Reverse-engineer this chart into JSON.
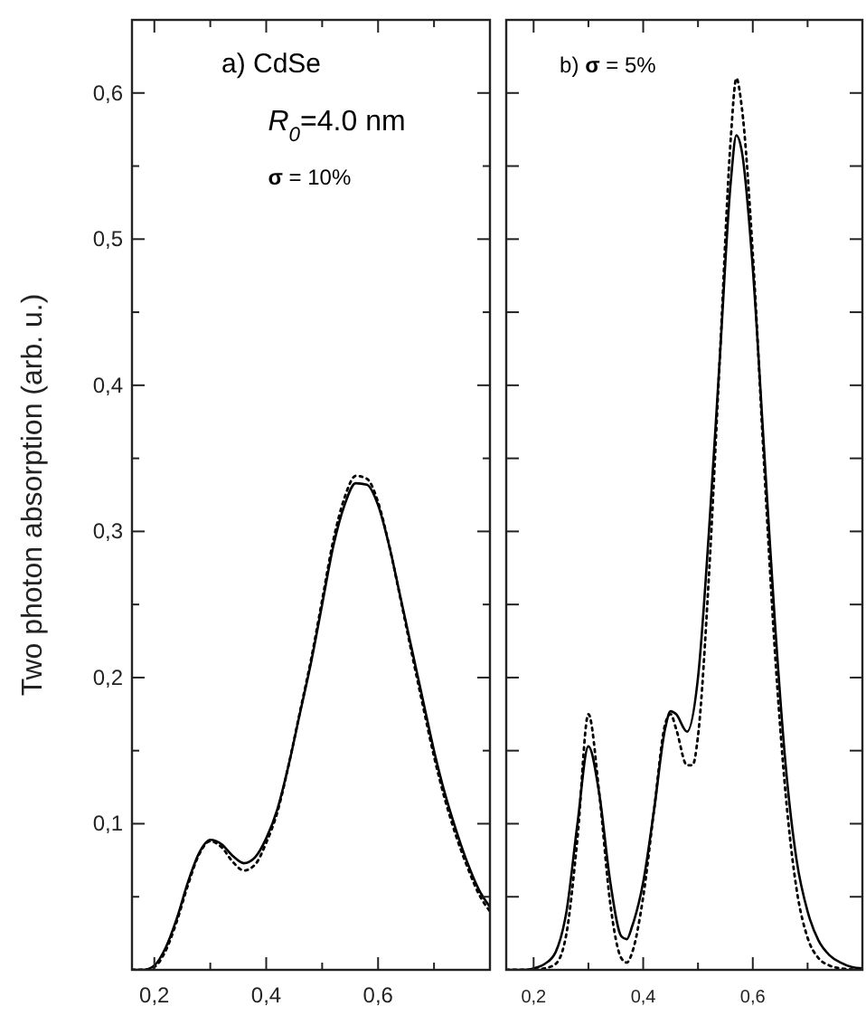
{
  "chart_data": [
    {
      "type": "line",
      "ylabel": "Two photon absorption (arb. u.)",
      "annotations": [
        "a) CdSe",
        "R$_{0}$=4.0 nm",
        "σ = 10%"
      ],
      "xlim": [
        0.16,
        0.8
      ],
      "ylim": [
        0,
        0.65
      ],
      "xticks": [
        {
          "value": 0.2,
          "label": "0,2"
        },
        {
          "value": 0.3,
          "label": null
        },
        {
          "value": 0.4,
          "label": "0,4"
        },
        {
          "value": 0.5,
          "label": null
        },
        {
          "value": 0.6,
          "label": "0,6"
        },
        {
          "value": 0.7,
          "label": null
        }
      ],
      "yticks": [
        {
          "value": 0.05,
          "label": null
        },
        {
          "value": 0.1,
          "label": "0,1"
        },
        {
          "value": 0.15,
          "label": null
        },
        {
          "value": 0.2,
          "label": "0,2"
        },
        {
          "value": 0.25,
          "label": null
        },
        {
          "value": 0.3,
          "label": "0,3"
        },
        {
          "value": 0.35,
          "label": null
        },
        {
          "value": 0.4,
          "label": "0,4"
        },
        {
          "value": 0.45,
          "label": null
        },
        {
          "value": 0.5,
          "label": "0,5"
        },
        {
          "value": 0.55,
          "label": null
        },
        {
          "value": 0.6,
          "label": "0,6"
        }
      ],
      "grid": false,
      "x": [
        0.16,
        0.18,
        0.2,
        0.22,
        0.24,
        0.26,
        0.28,
        0.3,
        0.32,
        0.34,
        0.36,
        0.38,
        0.4,
        0.42,
        0.44,
        0.46,
        0.48,
        0.5,
        0.52,
        0.54,
        0.56,
        0.58,
        0.6,
        0.62,
        0.64,
        0.66,
        0.68,
        0.7,
        0.72,
        0.74,
        0.76,
        0.78,
        0.8
      ],
      "series": [
        {
          "color": "#000000",
          "line_style": "solid",
          "values": [
            0,
            0,
            0.003,
            0.015,
            0.035,
            0.06,
            0.08,
            0.089,
            0.086,
            0.078,
            0.073,
            0.077,
            0.09,
            0.11,
            0.14,
            0.175,
            0.21,
            0.25,
            0.29,
            0.318,
            0.333,
            0.332,
            0.318,
            0.29,
            0.255,
            0.22,
            0.185,
            0.15,
            0.12,
            0.095,
            0.073,
            0.055,
            0.043
          ]
        },
        {
          "color": "#000000",
          "line_style": "dotted",
          "values": [
            0,
            0,
            0.002,
            0.013,
            0.033,
            0.058,
            0.079,
            0.088,
            0.084,
            0.074,
            0.068,
            0.072,
            0.087,
            0.108,
            0.14,
            0.176,
            0.212,
            0.253,
            0.294,
            0.323,
            0.338,
            0.336,
            0.32,
            0.29,
            0.254,
            0.217,
            0.181,
            0.146,
            0.116,
            0.091,
            0.07,
            0.052,
            0.04
          ]
        }
      ]
    },
    {
      "type": "line",
      "annotations": [
        "b) σ = 5%"
      ],
      "xlim": [
        0.15,
        0.8
      ],
      "ylim": [
        0,
        0.65
      ],
      "tick_labels": "x",
      "xticks": [
        {
          "value": 0.2,
          "label": "0,2"
        },
        {
          "value": 0.3,
          "label": null
        },
        {
          "value": 0.4,
          "label": "0,4"
        },
        {
          "value": 0.5,
          "label": null
        },
        {
          "value": 0.6,
          "label": "0,6"
        },
        {
          "value": 0.7,
          "label": null
        }
      ],
      "yticks": [
        {
          "value": 0.05,
          "label": null
        },
        {
          "value": 0.1,
          "label": null
        },
        {
          "value": 0.15,
          "label": null
        },
        {
          "value": 0.2,
          "label": null
        },
        {
          "value": 0.25,
          "label": null
        },
        {
          "value": 0.3,
          "label": null
        },
        {
          "value": 0.35,
          "label": null
        },
        {
          "value": 0.4,
          "label": null
        },
        {
          "value": 0.45,
          "label": null
        },
        {
          "value": 0.5,
          "label": null
        },
        {
          "value": 0.55,
          "label": null
        },
        {
          "value": 0.6,
          "label": null
        }
      ],
      "grid": false,
      "series": [
        {
          "color": "#000000",
          "line_style": "solid",
          "x": [
            0.15,
            0.18,
            0.2,
            0.22,
            0.24,
            0.26,
            0.28,
            0.3,
            0.32,
            0.34,
            0.36,
            0.37,
            0.38,
            0.4,
            0.42,
            0.44,
            0.45,
            0.46,
            0.48,
            0.5,
            0.52,
            0.54,
            0.56,
            0.57,
            0.58,
            0.6,
            0.62,
            0.64,
            0.66,
            0.68,
            0.7,
            0.72,
            0.74,
            0.76,
            0.78,
            0.8
          ],
          "values": [
            0,
            0,
            0.001,
            0.004,
            0.012,
            0.04,
            0.1,
            0.153,
            0.12,
            0.06,
            0.023,
            0.021,
            0.03,
            0.06,
            0.11,
            0.165,
            0.177,
            0.175,
            0.163,
            0.2,
            0.3,
            0.42,
            0.54,
            0.571,
            0.56,
            0.48,
            0.36,
            0.24,
            0.14,
            0.075,
            0.04,
            0.02,
            0.01,
            0.005,
            0.002,
            0.001
          ]
        },
        {
          "color": "#000000",
          "line_style": "dotted",
          "x": [
            0.15,
            0.2,
            0.22,
            0.24,
            0.26,
            0.28,
            0.3,
            0.32,
            0.34,
            0.36,
            0.37,
            0.38,
            0.4,
            0.42,
            0.44,
            0.45,
            0.46,
            0.48,
            0.49,
            0.5,
            0.52,
            0.54,
            0.56,
            0.57,
            0.58,
            0.6,
            0.62,
            0.64,
            0.66,
            0.68,
            0.7,
            0.72,
            0.74,
            0.76,
            0.8
          ],
          "values": [
            0,
            0,
            0.001,
            0.004,
            0.025,
            0.09,
            0.175,
            0.12,
            0.045,
            0.008,
            0.005,
            0.012,
            0.05,
            0.11,
            0.168,
            0.175,
            0.165,
            0.14,
            0.14,
            0.16,
            0.27,
            0.42,
            0.57,
            0.61,
            0.59,
            0.49,
            0.35,
            0.22,
            0.12,
            0.055,
            0.022,
            0.008,
            0.003,
            0.001,
            0
          ]
        }
      ]
    }
  ]
}
